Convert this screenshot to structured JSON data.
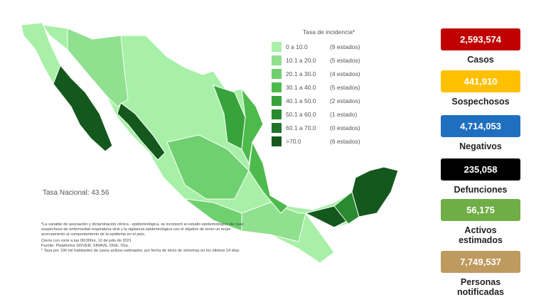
{
  "legend": {
    "title": "Tasa de incidencia*",
    "items": [
      {
        "range": "0   a  10.0",
        "count": "(9 estados)",
        "color": "#a8f0a8"
      },
      {
        "range": "10.1 a  20.0",
        "count": "(5 estados)",
        "color": "#8fe08f"
      },
      {
        "range": "20.1 a  30.0",
        "count": "(4 estados)",
        "color": "#6fd06f"
      },
      {
        "range": "30.1 a  40.0",
        "count": "(5 estados)",
        "color": "#4cbb4c"
      },
      {
        "range": "40.1 a  50.0",
        "count": "(2 estados)",
        "color": "#36a43a"
      },
      {
        "range": "50.1 a  60.0",
        "count": "(1 estado)",
        "color": "#2a8a30"
      },
      {
        "range": "60.1 a  70.0",
        "count": "(0 estados)",
        "color": "#1f7428"
      },
      {
        "range": ">70.0",
        "count": "(6 estados)",
        "color": "#15581e"
      }
    ]
  },
  "national_rate": "Tasa Nacional: 43.56",
  "footnotes": [
    "*La variable de asociación y dictaminación clínica - epidemiológica, se incorporó al estudio epidemiológico de caso sospechoso de enfermedad respiratoria viral y la vigilancia epidemiológica con el objetivo de tener un mejor acercamiento al comportamiento de la epidemia en el país.",
    "Cierre con corte a las 09:00hrs, 12 de julio de 2021",
    "Fuente: Plataforma SISVER, SINAVE, DGE, SSa.",
    "* Tasa por 100 mil habitantes de casos activos estimados, por fecha de inicio de síntomas en los últimos 14 días."
  ],
  "stats": [
    {
      "value": "2,593,574",
      "label": "Casos",
      "color": "#c00000"
    },
    {
      "value": "441,910",
      "label": "Sospechosos",
      "color": "#ffc000"
    },
    {
      "value": "4,714,053",
      "label": "Negativos",
      "color": "#1f6fc0"
    },
    {
      "value": "235,058",
      "label": "Defunciones",
      "color": "#000000"
    },
    {
      "value": "56,175",
      "label": "Activos estimados",
      "color": "#70ad47"
    },
    {
      "value": "7,749,537",
      "label": "Personas notificadas",
      "color": "#bf9a5e"
    }
  ]
}
